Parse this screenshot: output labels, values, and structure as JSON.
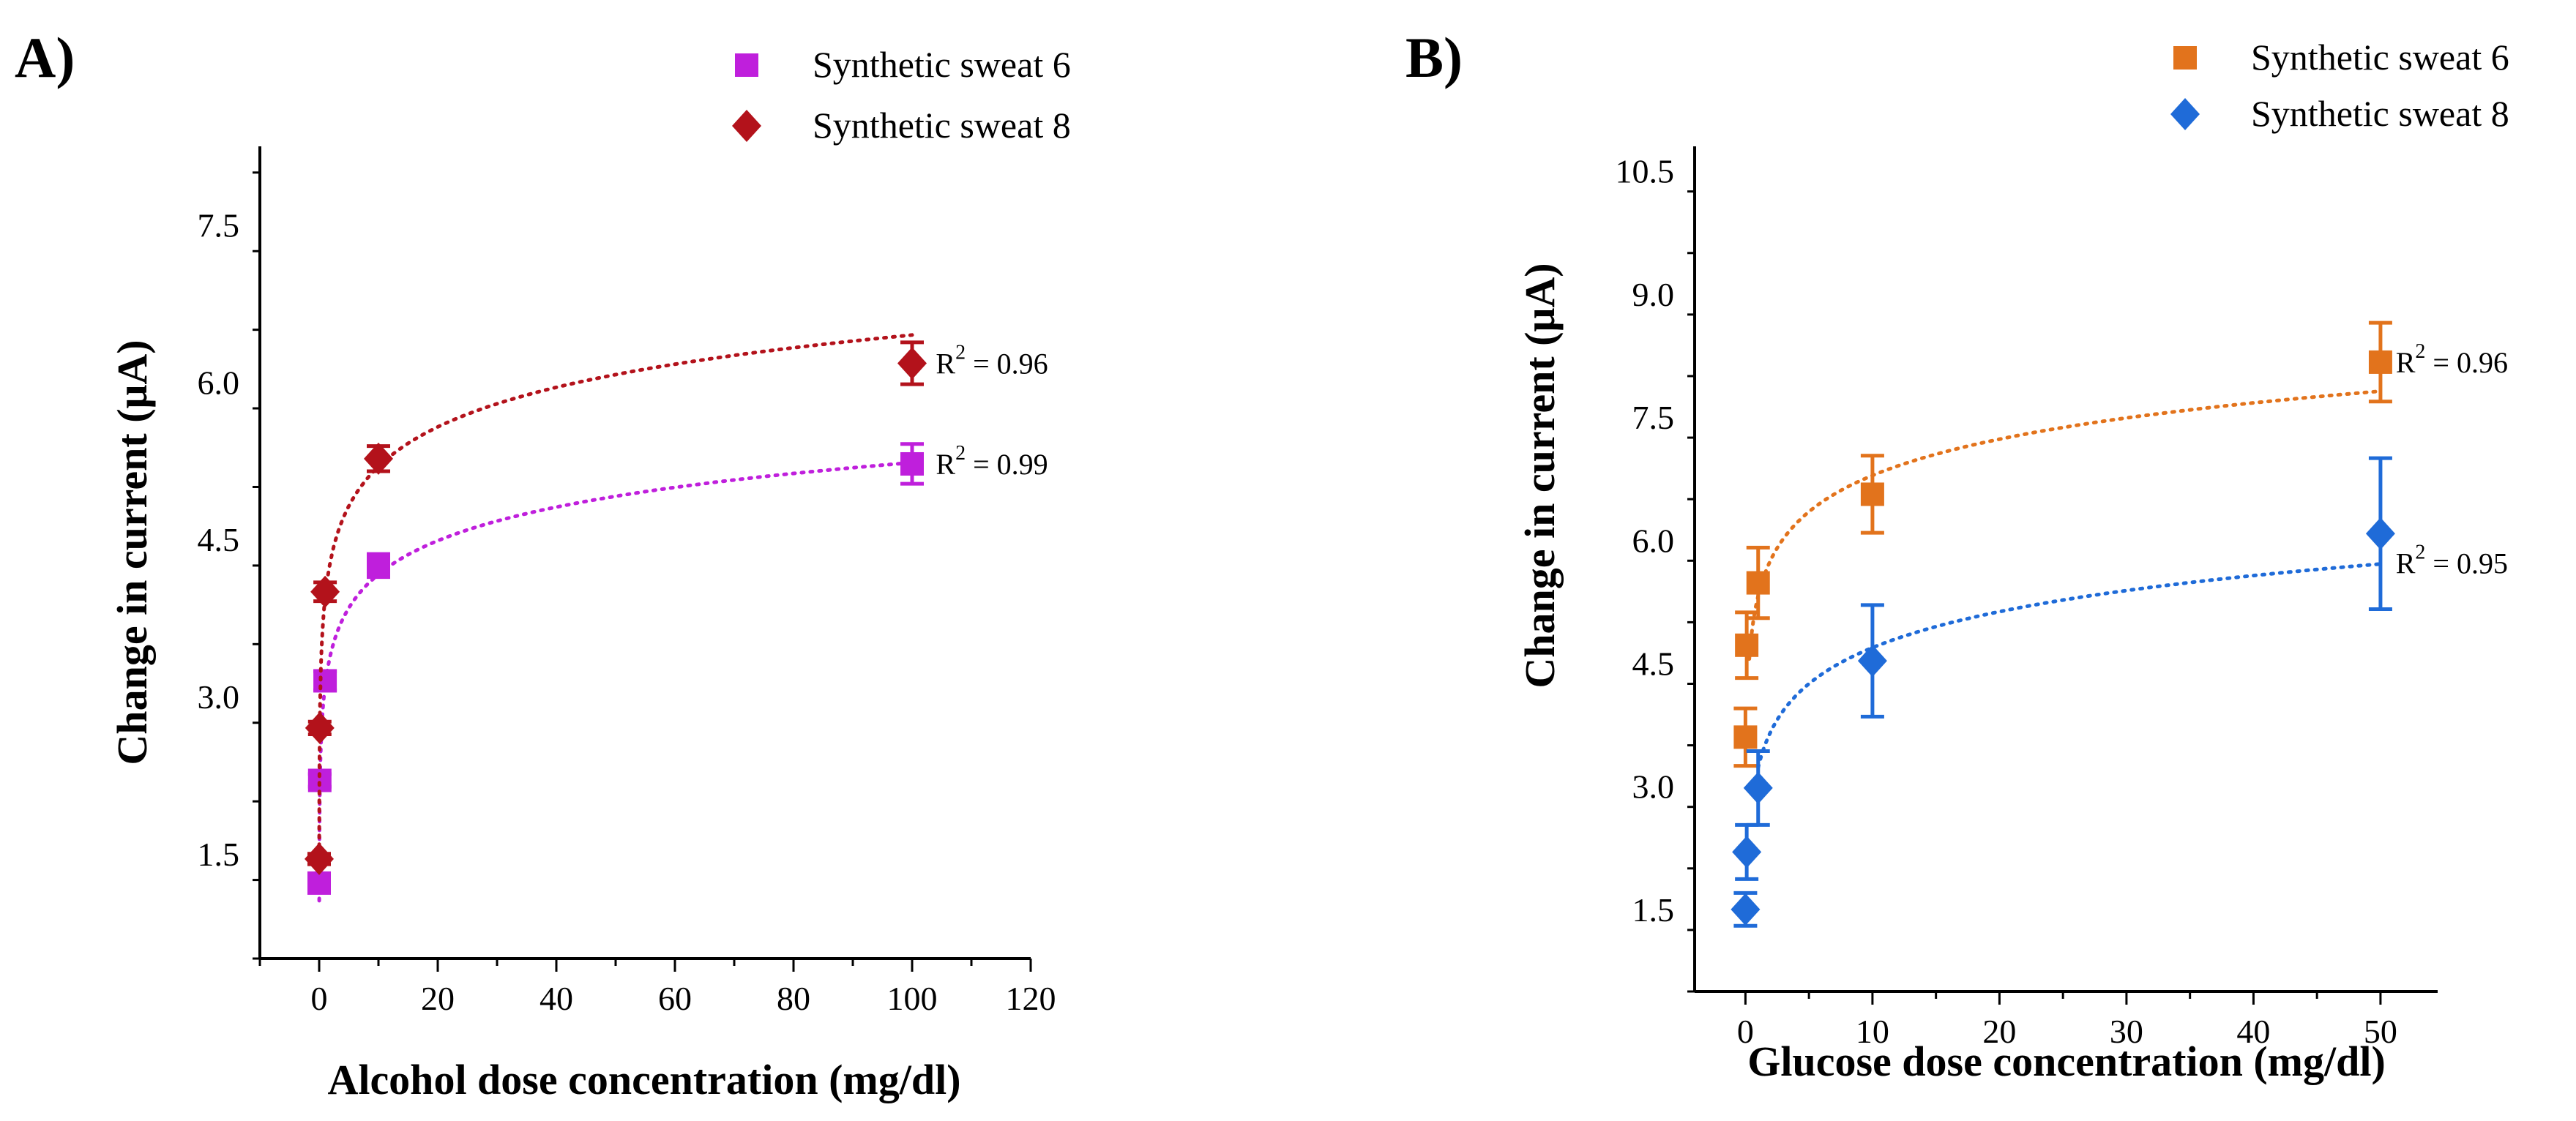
{
  "chart_data": [
    {
      "type": "scatter",
      "panel_label": "A)",
      "xlabel": "Alcohol dose concentration (mg/dl)",
      "ylabel": "Change in current (μA)",
      "xlim": [
        -10,
        120
      ],
      "ylim": [
        0.5,
        8.25
      ],
      "xticks": [
        0,
        20,
        40,
        60,
        80,
        100,
        120
      ],
      "xtick_labels": [
        "0",
        "20",
        "40",
        "60",
        "80",
        "100",
        "120"
      ],
      "yticks": [
        1.5,
        3.0,
        4.5,
        6.0,
        7.5
      ],
      "ytick_labels": [
        "1.5",
        "3.0",
        "4.5",
        "6.0",
        "7.5"
      ],
      "grid": false,
      "legend_position": "top-right",
      "series": [
        {
          "name": "Synthetic sweat 6",
          "marker": "square",
          "color": "#bf1fdc",
          "x": [
            0,
            0.1,
            1,
            10,
            100
          ],
          "y": [
            1.22,
            2.2,
            3.15,
            4.25,
            5.22
          ],
          "err": [
            0.06,
            0.06,
            0.09,
            0.11,
            0.19
          ],
          "fit": {
            "type": "logarithmic",
            "a": 3.1,
            "b": 0.463,
            "x_range": [
              0.012,
              100
            ]
          },
          "r2_label": "R² = 0.99",
          "r2_pos": [
            104,
            5.22
          ]
        },
        {
          "name": "Synthetic sweat 8",
          "marker": "diamond",
          "color": "#b3121b",
          "x": [
            0,
            0.1,
            1,
            10,
            100
          ],
          "y": [
            1.45,
            2.7,
            4.0,
            5.27,
            6.18
          ],
          "err": [
            0.05,
            0.06,
            0.09,
            0.12,
            0.2
          ],
          "fit": {
            "type": "logarithmic",
            "a": 3.94,
            "b": 0.545,
            "x_range": [
              0.0095,
              100
            ]
          },
          "r2_label": "R² = 0.96",
          "r2_pos": [
            104,
            6.18
          ]
        }
      ]
    },
    {
      "type": "scatter",
      "panel_label": "B)",
      "xlabel": "Glucose dose concentration (mg/dl)",
      "ylabel": "Change in current (μA)",
      "xlim": [
        -4,
        54.5
      ],
      "ylim": [
        0.5,
        10.8
      ],
      "xticks": [
        0,
        10,
        20,
        30,
        40,
        50
      ],
      "xtick_labels": [
        "0",
        "10",
        "20",
        "30",
        "40",
        "50"
      ],
      "yticks": [
        1.5,
        3.0,
        4.5,
        6.0,
        7.5,
        9.0,
        10.5
      ],
      "ytick_labels": [
        "1.5",
        "3.0",
        "4.5",
        "6.0",
        "7.5",
        "9.0",
        "10.5"
      ],
      "grid": false,
      "legend_position": "top-right",
      "series": [
        {
          "name": "Synthetic sweat 6",
          "marker": "square",
          "color": "#e2731c",
          "x": [
            0,
            0.1,
            1,
            10,
            50
          ],
          "y": [
            3.6,
            4.72,
            5.48,
            6.56,
            8.17
          ],
          "err": [
            0.35,
            0.4,
            0.43,
            0.47,
            0.48
          ],
          "fit": {
            "type": "logarithmic",
            "a": 5.32,
            "b": 0.638,
            "x_range": [
              0.3,
              50
            ]
          },
          "r2_label": "R² = 0.96",
          "r2_pos": [
            51.2,
            8.17
          ]
        },
        {
          "name": "Synthetic sweat 8",
          "marker": "diamond",
          "color": "#1f6bd8",
          "x": [
            0,
            0.1,
            1,
            10,
            50
          ],
          "y": [
            1.5,
            2.2,
            2.98,
            4.53,
            6.08
          ],
          "err": [
            0.2,
            0.33,
            0.45,
            0.68,
            0.92
          ],
          "fit": {
            "type": "logarithmic",
            "a": 3.23,
            "b": 0.634,
            "x_range": [
              1,
              50
            ]
          },
          "r2_label": "R² = 0.95",
          "r2_pos": [
            51.2,
            5.72
          ]
        }
      ]
    }
  ]
}
